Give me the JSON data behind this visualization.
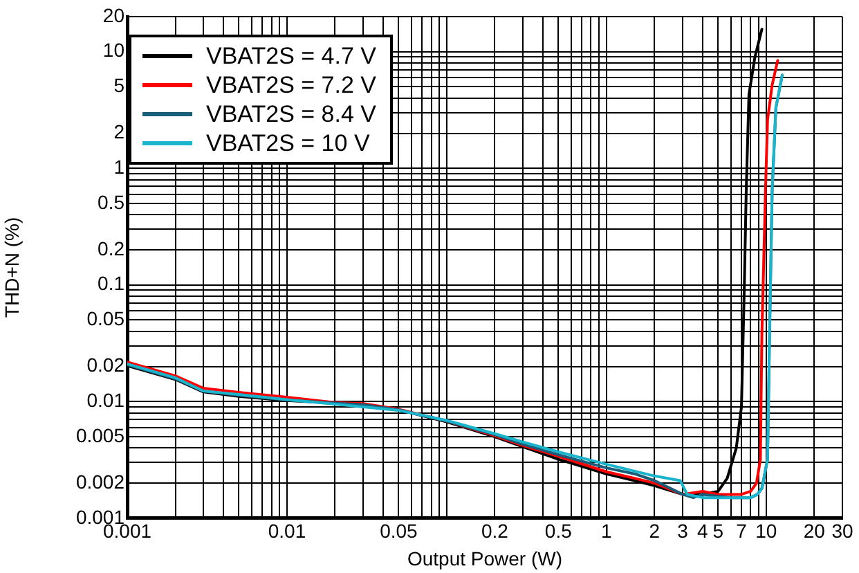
{
  "chart_data": {
    "type": "line",
    "xlabel": "Output Power (W)",
    "ylabel": "THD+N (%)",
    "log": "xy",
    "grid": true,
    "legend": "top left",
    "marker": "none",
    "line_style": "solid",
    "xlim": [
      0.001,
      30
    ],
    "ylim": [
      0.001,
      20
    ],
    "xticks": [
      0.001,
      {
        "value": 0.002,
        "label": null
      },
      {
        "value": 0.003,
        "label": null
      },
      {
        "value": 0.004,
        "label": null
      },
      {
        "value": 0.005,
        "label": null
      },
      {
        "value": 0.006,
        "label": null
      },
      {
        "value": 0.007,
        "label": null
      },
      {
        "value": 0.008,
        "label": null
      },
      {
        "value": 0.009,
        "label": null
      },
      0.01,
      {
        "value": 0.02,
        "label": null
      },
      {
        "value": 0.03,
        "label": null
      },
      {
        "value": 0.04,
        "label": null
      },
      0.05,
      {
        "value": 0.06,
        "label": null
      },
      {
        "value": 0.07,
        "label": null
      },
      {
        "value": 0.08,
        "label": null
      },
      {
        "value": 0.09,
        "label": null
      },
      {
        "value": 0.1,
        "label": null
      },
      0.2,
      {
        "value": 0.3,
        "label": null
      },
      {
        "value": 0.4,
        "label": null
      },
      0.5,
      {
        "value": 0.6,
        "label": null
      },
      {
        "value": 0.7,
        "label": null
      },
      {
        "value": 0.8,
        "label": null
      },
      {
        "value": 0.9,
        "label": null
      },
      1,
      2,
      3,
      4,
      5,
      {
        "value": 6,
        "label": null
      },
      7,
      {
        "value": 8,
        "label": null
      },
      {
        "value": 9,
        "label": null
      },
      10,
      20,
      30
    ],
    "yticks": [
      0.001,
      0.002,
      {
        "value": 0.003,
        "label": null
      },
      {
        "value": 0.004,
        "label": null
      },
      0.005,
      {
        "value": 0.006,
        "label": null
      },
      {
        "value": 0.007,
        "label": null
      },
      {
        "value": 0.008,
        "label": null
      },
      {
        "value": 0.009,
        "label": null
      },
      0.01,
      0.02,
      {
        "value": 0.03,
        "label": null
      },
      {
        "value": 0.04,
        "label": null
      },
      0.05,
      {
        "value": 0.06,
        "label": null
      },
      {
        "value": 0.07,
        "label": null
      },
      {
        "value": 0.08,
        "label": null
      },
      {
        "value": 0.09,
        "label": null
      },
      0.1,
      0.2,
      {
        "value": 0.3,
        "label": null
      },
      {
        "value": 0.4,
        "label": null
      },
      0.5,
      {
        "value": 0.6,
        "label": null
      },
      {
        "value": 0.7,
        "label": null
      },
      {
        "value": 0.8,
        "label": null
      },
      {
        "value": 0.9,
        "label": null
      },
      1,
      2,
      {
        "value": 3,
        "label": null
      },
      {
        "value": 4,
        "label": null
      },
      5,
      {
        "value": 6,
        "label": null
      },
      {
        "value": 7,
        "label": null
      },
      {
        "value": 8,
        "label": null
      },
      {
        "value": 9,
        "label": null
      },
      10,
      20
    ],
    "series": [
      {
        "name": "VBAT2S = 4.7 V",
        "color": "#000000",
        "x": [
          0.001,
          0.002,
          0.003,
          0.005,
          0.01,
          0.02,
          0.03,
          0.05,
          0.1,
          0.2,
          0.3,
          0.5,
          1,
          1.5,
          2,
          3,
          4,
          5,
          5.7,
          6.5,
          7,
          7.3,
          7.5,
          7.8,
          8.5,
          9.4
        ],
        "values": [
          0.0203,
          0.0155,
          0.0121,
          0.0111,
          0.0102,
          0.0097,
          0.0095,
          0.0085,
          0.0067,
          0.005,
          0.0041,
          0.0032,
          0.0024,
          0.0021,
          0.0019,
          0.0016,
          0.0016,
          0.0017,
          0.0022,
          0.004,
          0.009,
          0.1,
          0.65,
          4.3,
          9,
          15.6
        ]
      },
      {
        "name": "VBAT2S = 7.2 V",
        "color": "#ff0000",
        "x": [
          0.001,
          0.002,
          0.003,
          0.005,
          0.01,
          0.02,
          0.03,
          0.05,
          0.1,
          0.2,
          0.3,
          0.5,
          1,
          1.5,
          2,
          3,
          4,
          5,
          6,
          7,
          8,
          8.7,
          9.2,
          9.4,
          9.9,
          10.2,
          10.9,
          11.8
        ],
        "values": [
          0.0218,
          0.0166,
          0.013,
          0.012,
          0.0109,
          0.0098,
          0.0096,
          0.0086,
          0.0068,
          0.0051,
          0.0042,
          0.0034,
          0.0025,
          0.0022,
          0.002,
          0.0016,
          0.0017,
          0.0016,
          0.0016,
          0.0016,
          0.0017,
          0.002,
          0.0032,
          0.038,
          0.65,
          2.6,
          5.2,
          8.4
        ]
      },
      {
        "name": "VBAT2S = 8.4 V",
        "color": "#1a5d78",
        "x": [
          0.001,
          0.002,
          0.003,
          0.005,
          0.01,
          0.02,
          0.03,
          0.05,
          0.1,
          0.2,
          0.3,
          0.5,
          1,
          1.5,
          2,
          3,
          3.5,
          4,
          6,
          8,
          8.8,
          9.4,
          10.2,
          10.5,
          10.9,
          11.5,
          12.6
        ],
        "values": [
          0.0207,
          0.0157,
          0.0123,
          0.0113,
          0.0103,
          0.0097,
          0.0094,
          0.0085,
          0.0068,
          0.0052,
          0.0043,
          0.0035,
          0.0027,
          0.0024,
          0.0021,
          0.0016,
          0.0015,
          0.0016,
          0.0015,
          0.0015,
          0.0016,
          0.0018,
          0.0032,
          0.038,
          0.65,
          3.3,
          6.3
        ]
      },
      {
        "name": "VBAT2S = 10 V",
        "color": "#1ab4cc",
        "x": [
          0.001,
          0.002,
          0.003,
          0.005,
          0.01,
          0.02,
          0.03,
          0.05,
          0.1,
          0.2,
          0.3,
          0.5,
          1,
          2,
          2.9,
          3.2,
          4,
          6,
          8,
          8.8,
          9.4,
          10.2,
          10.5,
          10.9,
          11.5,
          12.6
        ],
        "values": [
          0.021,
          0.016,
          0.0123,
          0.0115,
          0.0104,
          0.0095,
          0.009,
          0.0084,
          0.0069,
          0.0053,
          0.0045,
          0.0037,
          0.0029,
          0.0023,
          0.0021,
          0.0016,
          0.0015,
          0.0015,
          0.0015,
          0.0016,
          0.0018,
          0.0032,
          0.038,
          0.65,
          3.3,
          6.3
        ]
      }
    ]
  }
}
